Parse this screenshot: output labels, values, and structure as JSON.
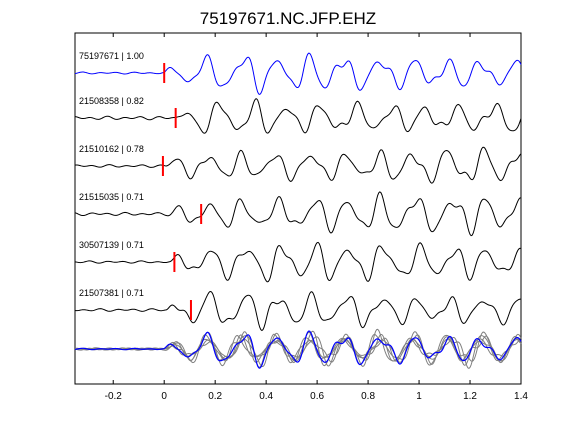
{
  "chart_data": {
    "type": "line",
    "title": "75197671.NC.JFP.EHZ",
    "xlabel": "",
    "ylabel": "",
    "xlim": [
      -0.35,
      1.4
    ],
    "xticks": [
      -0.2,
      0,
      0.2,
      0.4,
      0.6,
      0.8,
      1,
      1.2,
      1.4
    ],
    "xtick_labels": [
      "-0.2",
      "0",
      "0.2",
      "0.4",
      "0.6",
      "0.8",
      "1",
      "1.2",
      "1.4"
    ],
    "grid": false,
    "legend": "none",
    "colors": {
      "reference": "#0000ff",
      "trace": "#000000",
      "overlay": "#808080",
      "pick": "#ff0000"
    },
    "traces": [
      {
        "label": "75197671 | 1.00",
        "pick_time": 0.0,
        "shift": 0.0,
        "color": "#0000ff",
        "noise": 0.05
      },
      {
        "label": "21508358 | 0.82",
        "pick_time": 0.045,
        "shift": 0.045,
        "color": "#000000",
        "noise": 0.09
      },
      {
        "label": "21510162 | 0.78",
        "pick_time": -0.005,
        "shift": 0.0,
        "color": "#000000",
        "noise": 0.07
      },
      {
        "label": "21515035 | 0.71",
        "pick_time": 0.145,
        "shift": 0.01,
        "color": "#000000",
        "noise": 0.08
      },
      {
        "label": "30507139 | 0.71",
        "pick_time": 0.04,
        "shift": 0.02,
        "color": "#000000",
        "noise": 0.06
      },
      {
        "label": "21507381 | 0.71",
        "pick_time": 0.105,
        "shift": 0.01,
        "color": "#000000",
        "noise": 0.07
      }
    ],
    "overlay_stack": true
  }
}
